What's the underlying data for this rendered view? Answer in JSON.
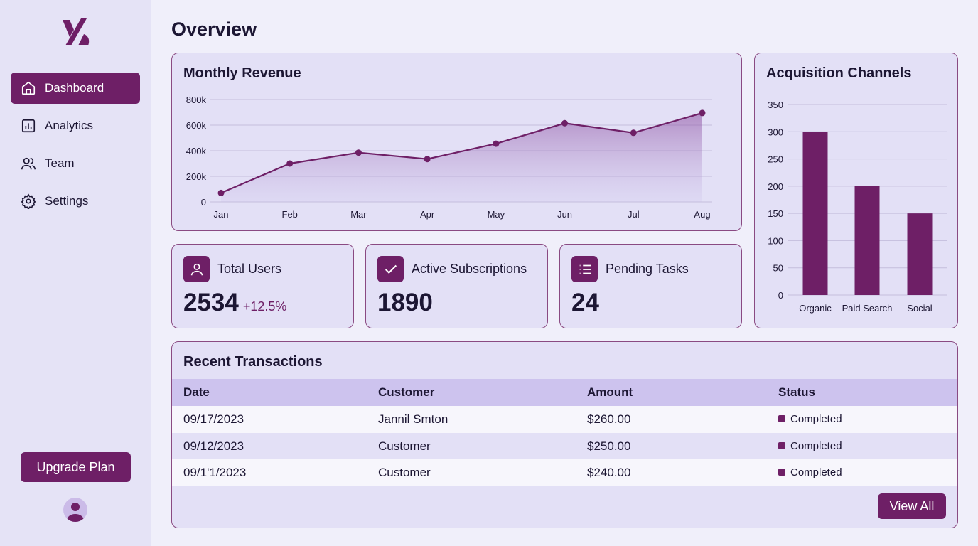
{
  "sidebar": {
    "items": [
      {
        "label": "Dashboard",
        "icon": "home-icon"
      },
      {
        "label": "Analytics",
        "icon": "chart-icon"
      },
      {
        "label": "Team",
        "icon": "users-icon"
      },
      {
        "label": "Settings",
        "icon": "gear-icon"
      }
    ],
    "upgrade_label": "Upgrade Plan"
  },
  "page_title": "Overview",
  "chart_data": [
    {
      "type": "area",
      "title": "Monthly Revenue",
      "categories": [
        "Jan",
        "Feb",
        "Mar",
        "Apr",
        "May",
        "Jun",
        "Jul",
        "Aug"
      ],
      "values": [
        70000,
        300000,
        385000,
        335000,
        455000,
        615000,
        540000,
        695000
      ],
      "yticks": [
        "0",
        "200k",
        "400k",
        "600k",
        "800k"
      ],
      "ylim": [
        0,
        800000
      ]
    },
    {
      "type": "bar",
      "title": "Acquisition Channels",
      "categories": [
        "Organic",
        "Paid Search",
        "Social"
      ],
      "values": [
        300,
        200,
        150
      ],
      "yticks": [
        "0",
        "50",
        "100",
        "150",
        "200",
        "250",
        "300",
        "350"
      ],
      "ylim": [
        0,
        350
      ]
    }
  ],
  "stats": [
    {
      "label": "Total Users",
      "value": "2534",
      "change": "+12.5%"
    },
    {
      "label": "Active Subscriptions",
      "value": "1890"
    },
    {
      "label": "Pending Tasks",
      "value": "24"
    }
  ],
  "transactions": {
    "title": "Recent Transactions",
    "headers": [
      "Date",
      "Customer",
      "Amount",
      "Status"
    ],
    "rows": [
      [
        "09/17/2023",
        "Jannil Smton",
        "$260.00",
        "Completed"
      ],
      [
        "09/12/2023",
        "Customer",
        "$250.00",
        "Completed"
      ],
      [
        "09/1'1/2023",
        "Customer",
        "$240.00",
        "Completed"
      ]
    ],
    "view_all": "View All"
  },
  "colors": {
    "accent": "#6e1f66"
  }
}
